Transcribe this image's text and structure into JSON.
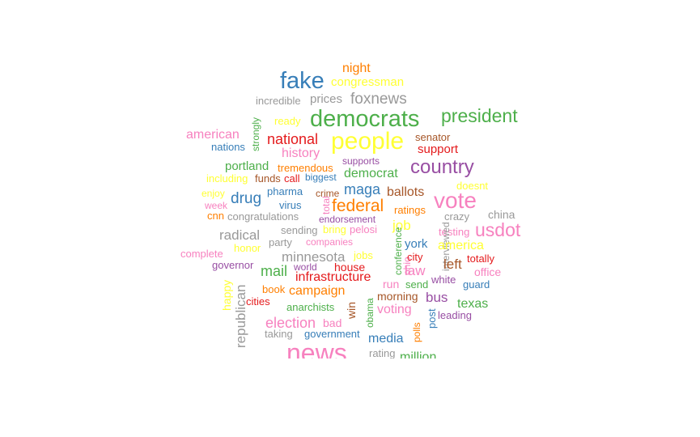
{
  "colors": {
    "blue": "#377eb8",
    "green": "#4daf4a",
    "purple": "#984ea3",
    "orange": "#ff7f00",
    "yellow": "#ffff33",
    "brown": "#a65628",
    "pink": "#f781bf",
    "gray": "#999999",
    "red": "#e41a1c"
  },
  "words": [
    {
      "id": "night",
      "text": "night",
      "color": "orange"
    },
    {
      "id": "fake",
      "text": "fake",
      "color": "blue"
    },
    {
      "id": "congressman",
      "text": "congressman",
      "color": "yellow"
    },
    {
      "id": "incredible",
      "text": "incredible",
      "color": "gray"
    },
    {
      "id": "prices",
      "text": "prices",
      "color": "gray"
    },
    {
      "id": "foxnews",
      "text": "foxnews",
      "color": "gray"
    },
    {
      "id": "democrats",
      "text": "democrats",
      "color": "green"
    },
    {
      "id": "president",
      "text": "president",
      "color": "green"
    },
    {
      "id": "strongly",
      "text": "strongly",
      "color": "green"
    },
    {
      "id": "ready",
      "text": "ready",
      "color": "yellow"
    },
    {
      "id": "american",
      "text": "american",
      "color": "pink"
    },
    {
      "id": "national",
      "text": "national",
      "color": "red"
    },
    {
      "id": "people",
      "text": "people",
      "color": "yellow"
    },
    {
      "id": "senator",
      "text": "senator",
      "color": "brown"
    },
    {
      "id": "nations",
      "text": "nations",
      "color": "blue"
    },
    {
      "id": "history",
      "text": "history",
      "color": "pink"
    },
    {
      "id": "support",
      "text": "support",
      "color": "red"
    },
    {
      "id": "supports",
      "text": "supports",
      "color": "purple"
    },
    {
      "id": "country",
      "text": "country",
      "color": "purple"
    },
    {
      "id": "portland",
      "text": "portland",
      "color": "green"
    },
    {
      "id": "tremendous",
      "text": "tremendous",
      "color": "orange"
    },
    {
      "id": "democrat",
      "text": "democrat",
      "color": "green"
    },
    {
      "id": "including",
      "text": "including",
      "color": "yellow"
    },
    {
      "id": "funds",
      "text": "funds",
      "color": "brown"
    },
    {
      "id": "call",
      "text": "call",
      "color": "red"
    },
    {
      "id": "biggest",
      "text": "biggest",
      "color": "blue"
    },
    {
      "id": "doesnt",
      "text": "doesnt",
      "color": "yellow"
    },
    {
      "id": "enjoy",
      "text": "enjoy",
      "color": "yellow"
    },
    {
      "id": "pharma",
      "text": "pharma",
      "color": "blue"
    },
    {
      "id": "crime",
      "text": "crime",
      "color": "brown"
    },
    {
      "id": "maga",
      "text": "maga",
      "color": "blue"
    },
    {
      "id": "ballots",
      "text": "ballots",
      "color": "brown"
    },
    {
      "id": "drug",
      "text": "drug",
      "color": "blue"
    },
    {
      "id": "vote",
      "text": "vote",
      "color": "pink"
    },
    {
      "id": "week",
      "text": "week",
      "color": "pink"
    },
    {
      "id": "virus",
      "text": "virus",
      "color": "blue"
    },
    {
      "id": "total",
      "text": "total",
      "color": "pink"
    },
    {
      "id": "federal",
      "text": "federal",
      "color": "orange"
    },
    {
      "id": "ratings",
      "text": "ratings",
      "color": "orange"
    },
    {
      "id": "cnn",
      "text": "cnn",
      "color": "orange"
    },
    {
      "id": "congratulations",
      "text": "congratulations",
      "color": "gray"
    },
    {
      "id": "endorsement",
      "text": "endorsement",
      "color": "purple"
    },
    {
      "id": "crazy",
      "text": "crazy",
      "color": "gray"
    },
    {
      "id": "china",
      "text": "china",
      "color": "gray"
    },
    {
      "id": "job",
      "text": "job",
      "color": "yellow"
    },
    {
      "id": "radical",
      "text": "radical",
      "color": "gray"
    },
    {
      "id": "sending",
      "text": "sending",
      "color": "gray"
    },
    {
      "id": "bring",
      "text": "bring",
      "color": "yellow"
    },
    {
      "id": "pelosi",
      "text": "pelosi",
      "color": "pink"
    },
    {
      "id": "testing",
      "text": "testing",
      "color": "pink"
    },
    {
      "id": "usdot",
      "text": "usdot",
      "color": "pink"
    },
    {
      "id": "interviewed",
      "text": "interviewed",
      "color": "gray"
    },
    {
      "id": "party",
      "text": "party",
      "color": "gray"
    },
    {
      "id": "companies",
      "text": "companies",
      "color": "pink"
    },
    {
      "id": "conference",
      "text": "conference",
      "color": "green"
    },
    {
      "id": "york",
      "text": "york",
      "color": "blue"
    },
    {
      "id": "america",
      "text": "america",
      "color": "yellow"
    },
    {
      "id": "honor",
      "text": "honor",
      "color": "yellow"
    },
    {
      "id": "complete",
      "text": "complete",
      "color": "pink"
    },
    {
      "id": "minnesota",
      "text": "minnesota",
      "color": "gray"
    },
    {
      "id": "jobs",
      "text": "jobs",
      "color": "yellow"
    },
    {
      "id": "ohio",
      "text": "ohio",
      "color": "pink"
    },
    {
      "id": "city",
      "text": "city",
      "color": "red"
    },
    {
      "id": "totally",
      "text": "totally",
      "color": "red"
    },
    {
      "id": "governor",
      "text": "governor",
      "color": "purple"
    },
    {
      "id": "mail",
      "text": "mail",
      "color": "green"
    },
    {
      "id": "world",
      "text": "world",
      "color": "purple"
    },
    {
      "id": "house",
      "text": "house",
      "color": "red"
    },
    {
      "id": "law",
      "text": "law",
      "color": "pink"
    },
    {
      "id": "left",
      "text": "left",
      "color": "brown"
    },
    {
      "id": "office",
      "text": "office",
      "color": "pink"
    },
    {
      "id": "infrastructure",
      "text": "infrastructure",
      "color": "red"
    },
    {
      "id": "white",
      "text": "white",
      "color": "purple"
    },
    {
      "id": "guard",
      "text": "guard",
      "color": "blue"
    },
    {
      "id": "happy",
      "text": "happy",
      "color": "yellow"
    },
    {
      "id": "republican",
      "text": "republican",
      "color": "gray"
    },
    {
      "id": "book",
      "text": "book",
      "color": "orange"
    },
    {
      "id": "campaign",
      "text": "campaign",
      "color": "orange"
    },
    {
      "id": "run",
      "text": "run",
      "color": "pink"
    },
    {
      "id": "send",
      "text": "send",
      "color": "green"
    },
    {
      "id": "morning",
      "text": "morning",
      "color": "brown"
    },
    {
      "id": "bus",
      "text": "bus",
      "color": "purple"
    },
    {
      "id": "cities",
      "text": "cities",
      "color": "red"
    },
    {
      "id": "anarchists",
      "text": "anarchists",
      "color": "green"
    },
    {
      "id": "win",
      "text": "win",
      "color": "brown"
    },
    {
      "id": "obama",
      "text": "obama",
      "color": "green"
    },
    {
      "id": "voting",
      "text": "voting",
      "color": "pink"
    },
    {
      "id": "texas",
      "text": "texas",
      "color": "green"
    },
    {
      "id": "post",
      "text": "post",
      "color": "blue"
    },
    {
      "id": "leading",
      "text": "leading",
      "color": "purple"
    },
    {
      "id": "election",
      "text": "election",
      "color": "pink"
    },
    {
      "id": "bad",
      "text": "bad",
      "color": "pink"
    },
    {
      "id": "polls",
      "text": "polls",
      "color": "orange"
    },
    {
      "id": "taking",
      "text": "taking",
      "color": "gray"
    },
    {
      "id": "government",
      "text": "government",
      "color": "blue"
    },
    {
      "id": "media",
      "text": "media",
      "color": "blue"
    },
    {
      "id": "news",
      "text": "news",
      "color": "pink"
    },
    {
      "id": "rating",
      "text": "rating",
      "color": "gray"
    },
    {
      "id": "million",
      "text": "million",
      "color": "green"
    }
  ]
}
